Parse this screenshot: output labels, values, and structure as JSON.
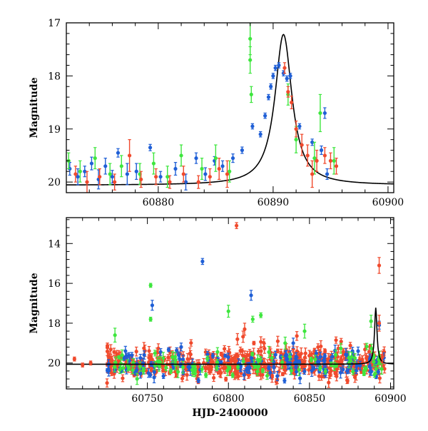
{
  "chart_data": [
    {
      "type": "scatter",
      "panel": "top",
      "xlim": [
        60872,
        60900.5
      ],
      "ylim": [
        20.2,
        17.0
      ],
      "y_inverted": true,
      "xlabel": "",
      "ylabel": "Magnitude",
      "xticks": [
        60880,
        60890,
        60900
      ],
      "yticks": [
        17,
        18,
        19,
        20
      ],
      "grid": false,
      "legend": "none",
      "model_curve": {
        "type": "lorentzian-peak",
        "peak_x": 60890.9,
        "peak_y": 17.22,
        "baseline_y": 20.06,
        "width": 0.9,
        "color": "#000000"
      },
      "series": [
        {
          "color": "#1f5fd6",
          "points": [
            [
              60872.3,
              19.75,
              0.12
            ],
            [
              60873.0,
              19.9,
              0.15
            ],
            [
              60873.6,
              19.8,
              0.1
            ],
            [
              60874.2,
              19.65,
              0.12
            ],
            [
              60874.8,
              19.95,
              0.18
            ],
            [
              60875.4,
              19.7,
              0.15
            ],
            [
              60876.0,
              19.9,
              0.12
            ],
            [
              60876.5,
              19.45,
              0.08
            ],
            [
              60877.3,
              19.85,
              0.2
            ],
            [
              60878.1,
              19.8,
              0.15
            ],
            [
              60879.3,
              19.35,
              0.06
            ],
            [
              60880.2,
              19.9,
              0.1
            ],
            [
              60881.5,
              19.75,
              0.12
            ],
            [
              60882.4,
              20.0,
              0.15
            ],
            [
              60883.3,
              19.55,
              0.1
            ],
            [
              60884.1,
              19.85,
              0.12
            ],
            [
              60884.9,
              19.6,
              0.08
            ],
            [
              60885.6,
              19.7,
              0.1
            ],
            [
              60886.5,
              19.55,
              0.08
            ],
            [
              60887.3,
              19.4,
              0.06
            ],
            [
              60888.2,
              18.95,
              0.05
            ],
            [
              60888.9,
              19.1,
              0.05
            ],
            [
              60889.3,
              18.75,
              0.05
            ],
            [
              60889.6,
              18.4,
              0.05
            ],
            [
              60889.8,
              18.2,
              0.05
            ],
            [
              60890.0,
              18.0,
              0.05
            ],
            [
              60890.2,
              17.85,
              0.05
            ],
            [
              60890.5,
              17.8,
              0.05
            ],
            [
              60890.9,
              17.95,
              0.05
            ],
            [
              60891.2,
              18.05,
              0.05
            ],
            [
              60891.5,
              18.0,
              0.05
            ],
            [
              60892.3,
              18.95,
              0.05
            ],
            [
              60893.4,
              19.25,
              0.06
            ],
            [
              60894.2,
              19.4,
              0.08
            ],
            [
              60894.5,
              18.7,
              0.1
            ],
            [
              60894.7,
              19.85,
              0.1
            ]
          ]
        },
        {
          "color": "#3ee63e",
          "points": [
            [
              60872.2,
              19.6,
              0.15
            ],
            [
              60873.2,
              19.8,
              0.2
            ],
            [
              60874.5,
              19.55,
              0.2
            ],
            [
              60875.8,
              19.85,
              0.2
            ],
            [
              60876.8,
              19.7,
              0.2
            ],
            [
              60878.4,
              19.85,
              0.2
            ],
            [
              60879.6,
              19.65,
              0.2
            ],
            [
              60880.8,
              19.9,
              0.2
            ],
            [
              60882.0,
              19.5,
              0.2
            ],
            [
              60883.8,
              19.75,
              0.2
            ],
            [
              60885.0,
              19.55,
              0.25
            ],
            [
              60886.2,
              19.8,
              0.2
            ],
            [
              60888.0,
              17.3,
              0.3
            ],
            [
              60888.0,
              17.7,
              0.25
            ],
            [
              60888.1,
              18.35,
              0.15
            ],
            [
              60891.3,
              18.35,
              0.2
            ],
            [
              60892.0,
              19.2,
              0.25
            ],
            [
              60893.6,
              19.55,
              0.3
            ],
            [
              60894.1,
              18.7,
              0.35
            ],
            [
              60895.3,
              19.6,
              0.25
            ]
          ]
        },
        {
          "color": "#f04a2d",
          "points": [
            [
              60872.8,
              19.85,
              0.15
            ],
            [
              60873.8,
              20.0,
              0.2
            ],
            [
              60874.9,
              19.9,
              0.15
            ],
            [
              60876.2,
              20.0,
              0.15
            ],
            [
              60877.5,
              19.5,
              0.3
            ],
            [
              60878.5,
              19.95,
              0.15
            ],
            [
              60879.8,
              19.9,
              0.15
            ],
            [
              60881.0,
              20.0,
              0.12
            ],
            [
              60882.2,
              19.85,
              0.15
            ],
            [
              60883.5,
              20.0,
              0.12
            ],
            [
              60884.5,
              19.9,
              0.15
            ],
            [
              60885.3,
              19.75,
              0.2
            ],
            [
              60886.0,
              19.85,
              0.25
            ],
            [
              60891.0,
              17.85,
              0.1
            ],
            [
              60891.3,
              18.3,
              0.1
            ],
            [
              60891.6,
              18.5,
              0.12
            ],
            [
              60892.0,
              19.0,
              0.15
            ],
            [
              60892.5,
              19.3,
              0.2
            ],
            [
              60893.0,
              19.5,
              0.2
            ],
            [
              60893.4,
              19.85,
              0.25
            ],
            [
              60893.8,
              19.6,
              0.2
            ],
            [
              60894.5,
              19.5,
              0.15
            ],
            [
              60895.0,
              19.6,
              0.15
            ],
            [
              60895.5,
              19.7,
              0.15
            ]
          ]
        }
      ]
    },
    {
      "type": "scatter",
      "panel": "bottom",
      "xlim": [
        60700,
        60902
      ],
      "ylim": [
        21.3,
        12.7
      ],
      "y_inverted": true,
      "xlabel": "HJD-2400000",
      "ylabel": "Magnitude",
      "xticks": [
        60750,
        60800,
        60850,
        60900
      ],
      "yticks": [
        14,
        16,
        18,
        20
      ],
      "grid": false,
      "legend": "none",
      "model_curve": {
        "type": "lorentzian-peak",
        "peak_x": 60890.9,
        "peak_y": 17.22,
        "baseline_y": 20.06,
        "width": 0.9,
        "color": "#000000"
      },
      "series": [
        {
          "color": "#1f5fd6",
          "points": [
            [
              60753,
              17.1,
              0.25
            ],
            [
              60784,
              14.9,
              0.15
            ],
            [
              60814,
              16.6,
              0.25
            ],
            [
              60840,
              19.0,
              0.25
            ],
            [
              60880,
              19.4,
              0.2
            ],
            [
              60893,
              18.1,
              0.2
            ]
          ]
        },
        {
          "color": "#3ee63e",
          "points": [
            [
              60730,
              18.6,
              0.35
            ],
            [
              60752,
              16.1,
              0.1
            ],
            [
              60752,
              17.8,
              0.1
            ],
            [
              60800,
              17.4,
              0.3
            ],
            [
              60815,
              17.8,
              0.15
            ],
            [
              60820,
              17.6,
              0.12
            ],
            [
              60835,
              19.0,
              0.3
            ],
            [
              60847,
              18.4,
              0.35
            ],
            [
              60888,
              17.9,
              0.3
            ]
          ]
        },
        {
          "color": "#f04a2d",
          "points": [
            [
              60705,
              19.8,
              0.1
            ],
            [
              60710,
              20.1,
              0.1
            ],
            [
              60715,
              20.0,
              0.1
            ],
            [
              60805,
              13.1,
              0.15
            ],
            [
              60810,
              18.3,
              0.3
            ],
            [
              60893,
              18.0,
              0.4
            ],
            [
              60893,
              15.1,
              0.4
            ],
            [
              60895,
              19.7,
              0.3
            ]
          ]
        }
      ],
      "dense_band": {
        "x_range": [
          60725,
          60897
        ],
        "center_y": 20.05,
        "spread": 0.35,
        "colors": [
          "#f04a2d",
          "#1f5fd6",
          "#3ee63e"
        ],
        "counts": [
          520,
          140,
          90
        ]
      }
    }
  ]
}
